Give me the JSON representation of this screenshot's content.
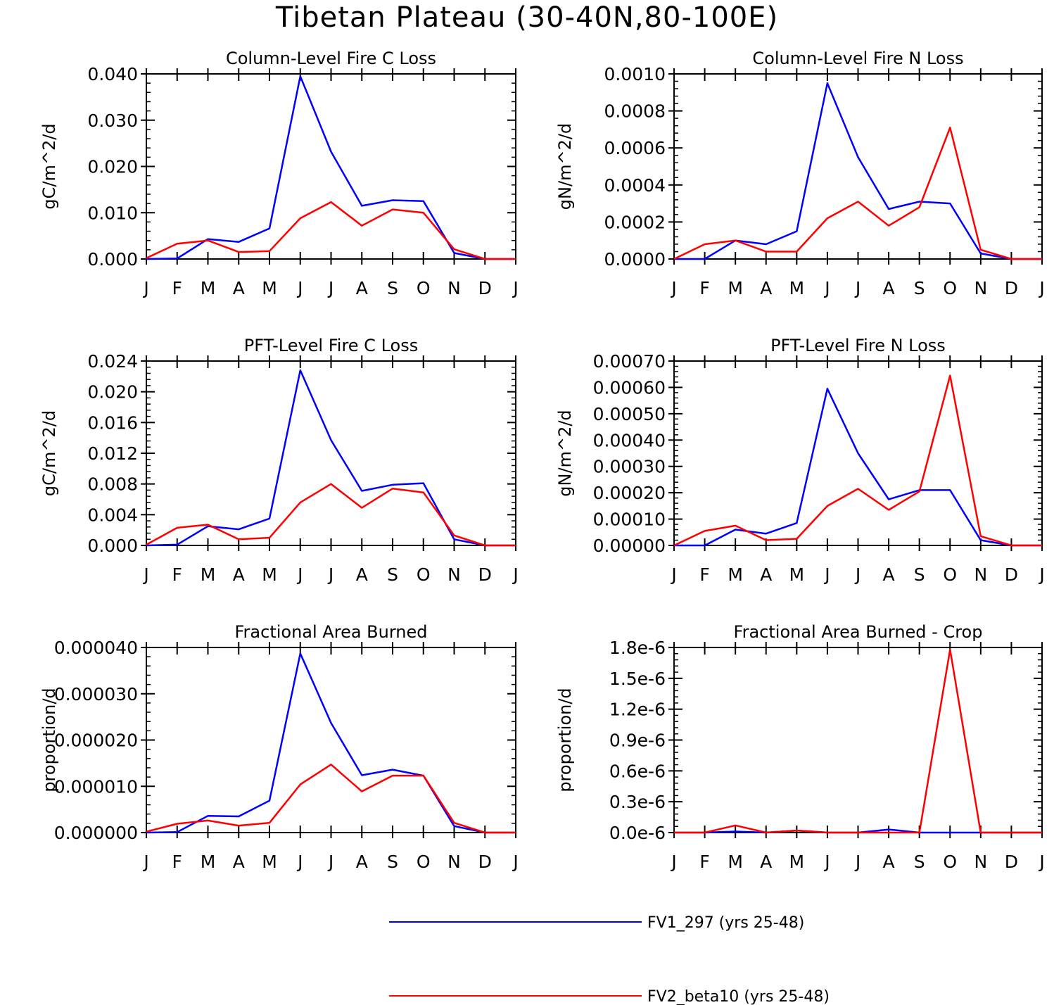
{
  "main_title": "Tibetan Plateau (30-40N,80-100E)",
  "colors": {
    "series1": "#0000ff",
    "series2": "#ff0000"
  },
  "legend": [
    {
      "label": "FV1_297 (yrs 25-48)",
      "color": "#0000ff"
    },
    {
      "label": "FV2_beta10 (yrs 25-48)",
      "color": "#ff0000"
    }
  ],
  "chart_data": [
    {
      "type": "line",
      "title": "Column-Level Fire C Loss",
      "ylabel": "gC/m^2/d",
      "xlabel": "",
      "categories": [
        "J",
        "F",
        "M",
        "A",
        "M",
        "J",
        "J",
        "A",
        "S",
        "O",
        "N",
        "D",
        "J"
      ],
      "ylim": [
        0,
        0.04
      ],
      "yticks": [
        0,
        0.01,
        0.02,
        0.03,
        0.04
      ],
      "ytick_labels": [
        "0.000",
        "0.010",
        "0.020",
        "0.030",
        "0.040"
      ],
      "series": [
        {
          "name": "FV1_297 (yrs 25-48)",
          "values": [
            0.0,
            0.0001,
            0.0043,
            0.0037,
            0.0066,
            0.0395,
            0.0232,
            0.0115,
            0.0127,
            0.0125,
            0.0013,
            0.0,
            0.0
          ]
        },
        {
          "name": "FV2_beta10 (yrs 25-48)",
          "values": [
            0.0002,
            0.0033,
            0.004,
            0.0015,
            0.0017,
            0.0088,
            0.0123,
            0.0072,
            0.0107,
            0.01,
            0.0021,
            0.0,
            0.0
          ]
        }
      ]
    },
    {
      "type": "line",
      "title": "Column-Level Fire N Loss",
      "ylabel": "gN/m^2/d",
      "xlabel": "",
      "categories": [
        "J",
        "F",
        "M",
        "A",
        "M",
        "J",
        "J",
        "A",
        "S",
        "O",
        "N",
        "D",
        "J"
      ],
      "ylim": [
        0,
        0.001
      ],
      "yticks": [
        0,
        0.0002,
        0.0004,
        0.0006,
        0.0008,
        0.001
      ],
      "ytick_labels": [
        "0.0000",
        "0.0002",
        "0.0004",
        "0.0006",
        "0.0008",
        "0.0010"
      ],
      "series": [
        {
          "name": "FV1_297 (yrs 25-48)",
          "values": [
            0.0,
            0.0,
            0.0001,
            8e-05,
            0.00015,
            0.00095,
            0.00055,
            0.00027,
            0.00031,
            0.0003,
            3e-05,
            0.0,
            0.0
          ]
        },
        {
          "name": "FV2_beta10 (yrs 25-48)",
          "values": [
            0.0,
            8e-05,
            0.0001,
            4e-05,
            4e-05,
            0.00022,
            0.00031,
            0.00018,
            0.00028,
            0.00071,
            5e-05,
            0.0,
            0.0
          ]
        }
      ]
    },
    {
      "type": "line",
      "title": "PFT-Level Fire C Loss",
      "ylabel": "gC/m^2/d",
      "xlabel": "",
      "categories": [
        "J",
        "F",
        "M",
        "A",
        "M",
        "J",
        "J",
        "A",
        "S",
        "O",
        "N",
        "D",
        "J"
      ],
      "ylim": [
        0,
        0.024
      ],
      "yticks": [
        0,
        0.004,
        0.008,
        0.012,
        0.016,
        0.02,
        0.024
      ],
      "ytick_labels": [
        "0.000",
        "0.004",
        "0.008",
        "0.012",
        "0.016",
        "0.020",
        "0.024"
      ],
      "series": [
        {
          "name": "FV1_297 (yrs 25-48)",
          "values": [
            0.0,
            0.0001,
            0.0025,
            0.0021,
            0.0035,
            0.0228,
            0.0137,
            0.0071,
            0.0079,
            0.0081,
            0.0008,
            0.0,
            0.0
          ]
        },
        {
          "name": "FV2_beta10 (yrs 25-48)",
          "values": [
            0.0001,
            0.0023,
            0.0027,
            0.0008,
            0.001,
            0.0056,
            0.008,
            0.0049,
            0.0074,
            0.0069,
            0.0013,
            0.0,
            0.0
          ]
        }
      ]
    },
    {
      "type": "line",
      "title": "PFT-Level Fire N Loss",
      "ylabel": "gN/m^2/d",
      "xlabel": "",
      "categories": [
        "J",
        "F",
        "M",
        "A",
        "M",
        "J",
        "J",
        "A",
        "S",
        "O",
        "N",
        "D",
        "J"
      ],
      "ylim": [
        0,
        0.0007
      ],
      "yticks": [
        0,
        0.0001,
        0.0002,
        0.0003,
        0.0004,
        0.0005,
        0.0006,
        0.0007
      ],
      "ytick_labels": [
        "0.00000",
        "0.00010",
        "0.00020",
        "0.00030",
        "0.00040",
        "0.00050",
        "0.00060",
        "0.00070"
      ],
      "series": [
        {
          "name": "FV1_297 (yrs 25-48)",
          "values": [
            0.0,
            0.0,
            6e-05,
            4.5e-05,
            8.5e-05,
            0.000595,
            0.00035,
            0.000175,
            0.00021,
            0.00021,
            2e-05,
            0.0,
            0.0
          ]
        },
        {
          "name": "FV2_beta10 (yrs 25-48)",
          "values": [
            0.0,
            5.5e-05,
            7.5e-05,
            2e-05,
            2.5e-05,
            0.00015,
            0.000215,
            0.000135,
            0.000205,
            0.000645,
            3.5e-05,
            0.0,
            0.0
          ]
        }
      ]
    },
    {
      "type": "line",
      "title": "Fractional Area Burned",
      "ylabel": "proportion/d",
      "xlabel": "",
      "categories": [
        "J",
        "F",
        "M",
        "A",
        "M",
        "J",
        "J",
        "A",
        "S",
        "O",
        "N",
        "D",
        "J"
      ],
      "ylim": [
        0,
        4e-05
      ],
      "yticks": [
        0,
        1e-05,
        2e-05,
        3e-05,
        4e-05
      ],
      "ytick_labels": [
        "0.000000",
        "0.000010",
        "0.000020",
        "0.000030",
        "0.000040"
      ],
      "series": [
        {
          "name": "FV1_297 (yrs 25-48)",
          "values": [
            0.0,
            1e-07,
            3.6e-06,
            3.5e-06,
            6.9e-06,
            3.87e-05,
            2.37e-05,
            1.24e-05,
            1.36e-05,
            1.23e-05,
            1.4e-06,
            0.0,
            0.0
          ]
        },
        {
          "name": "FV2_beta10 (yrs 25-48)",
          "values": [
            2e-07,
            1.9e-06,
            2.6e-06,
            1.5e-06,
            2.1e-06,
            1.04e-05,
            1.47e-05,
            8.9e-06,
            1.23e-05,
            1.23e-05,
            2.1e-06,
            0.0,
            0.0
          ]
        }
      ]
    },
    {
      "type": "line",
      "title": "Fractional Area Burned - Crop",
      "ylabel": "proportion/d",
      "xlabel": "",
      "categories": [
        "J",
        "F",
        "M",
        "A",
        "M",
        "J",
        "J",
        "A",
        "S",
        "O",
        "N",
        "D",
        "J"
      ],
      "ylim": [
        0,
        1.8e-06
      ],
      "yticks": [
        0,
        3e-07,
        6e-07,
        9e-07,
        1.2e-06,
        1.5e-06,
        1.8e-06
      ],
      "ytick_labels": [
        "0.0e-6",
        "0.3e-6",
        "0.6e-6",
        "0.9e-6",
        "1.2e-6",
        "1.5e-6",
        "1.8e-6"
      ],
      "series": [
        {
          "name": "FV1_297 (yrs 25-48)",
          "values": [
            0.0,
            0.0,
            1e-08,
            0.0,
            2e-08,
            0.0,
            0.0,
            3e-08,
            0.0,
            0.0,
            0.0,
            0.0,
            0.0
          ]
        },
        {
          "name": "FV2_beta10 (yrs 25-48)",
          "values": [
            0.0,
            0.0,
            7e-08,
            0.0,
            2e-08,
            0.0,
            0.0,
            0.0,
            0.0,
            1.78e-06,
            0.0,
            0.0,
            0.0
          ]
        }
      ]
    }
  ]
}
